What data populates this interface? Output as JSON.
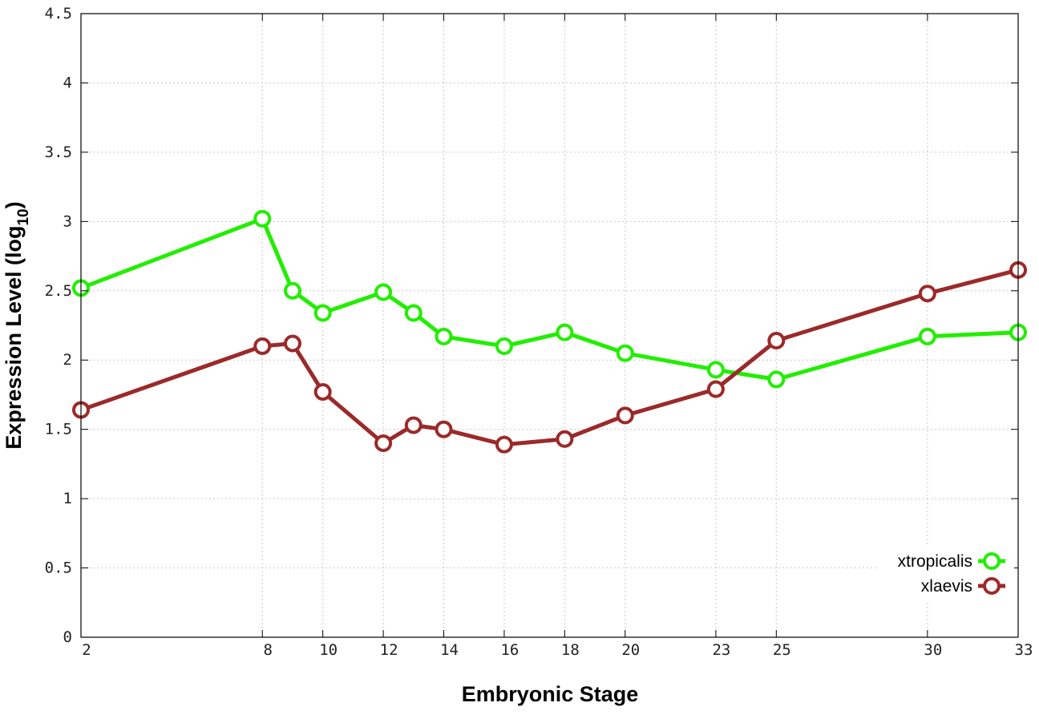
{
  "chart_data": {
    "type": "line",
    "xlabel": "Embryonic Stage",
    "ylabel_main": "Expression Level (log",
    "ylabel_sub": "10",
    "ylabel_close": ")",
    "x": [
      2,
      8,
      9,
      10,
      12,
      13,
      14,
      16,
      18,
      20,
      23,
      25,
      30,
      33
    ],
    "x_tick_labels": [
      "2",
      "8",
      "10",
      "12",
      "14",
      "16",
      "18",
      "20",
      "23",
      "25",
      "30",
      "33"
    ],
    "x_tick_values": [
      2,
      8,
      10,
      12,
      14,
      16,
      18,
      20,
      23,
      25,
      30,
      33
    ],
    "xlim": [
      2,
      33
    ],
    "ylim": [
      0,
      4.5
    ],
    "y_ticks": [
      {
        "value": 0,
        "label": "0"
      },
      {
        "value": 0.5,
        "label": "0.5"
      },
      {
        "value": 1,
        "label": "1"
      },
      {
        "value": 1.5,
        "label": "1.5"
      },
      {
        "value": 2,
        "label": "2"
      },
      {
        "value": 2.5,
        "label": "2.5"
      },
      {
        "value": 3,
        "label": "3"
      },
      {
        "value": 3.5,
        "label": "3.5"
      },
      {
        "value": 4,
        "label": "4"
      },
      {
        "value": 4.5,
        "label": "4.5"
      }
    ],
    "grid": true,
    "legend_position": "bottom-right",
    "series": [
      {
        "name": "xtropicalis",
        "color": "#22ee00",
        "values": [
          2.52,
          3.02,
          2.5,
          2.34,
          2.49,
          2.34,
          2.17,
          2.1,
          2.2,
          2.05,
          1.93,
          1.86,
          2.17,
          2.2
        ]
      },
      {
        "name": "xlaevis",
        "color": "#9b2a2a",
        "values": [
          1.64,
          2.1,
          2.12,
          1.77,
          1.4,
          1.53,
          1.5,
          1.39,
          1.43,
          1.6,
          1.79,
          2.14,
          2.48,
          2.65
        ]
      }
    ]
  }
}
